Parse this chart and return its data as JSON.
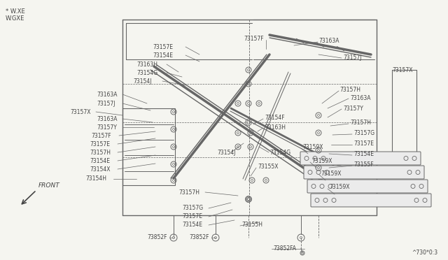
{
  "bg_color": "#f5f5f0",
  "line_color": "#666666",
  "text_color": "#444444",
  "fig_width": 6.4,
  "fig_height": 3.72,
  "dpi": 100,
  "note_code": "^730*0:3",
  "top_legend": [
    "* W.XE",
    "W.GXE"
  ]
}
